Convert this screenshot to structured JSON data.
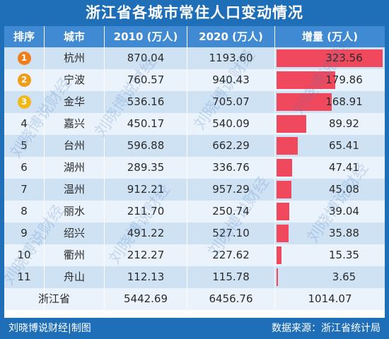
{
  "title": "浙江省各城市常住人口变动情况",
  "headers": {
    "rank": "排序",
    "city": "城市",
    "pop2010": "2010 (万人)",
    "pop2020": "2020 (万人)",
    "increase": "增量 (万人)"
  },
  "badge_colors": [
    "#ef7d1a",
    "#f19d18",
    "#f4b718"
  ],
  "bar_color": "#f0495e",
  "chart_data": {
    "type": "table",
    "title": "浙江省各城市常住人口变动情况",
    "columns": [
      "排序",
      "城市",
      "2010 (万人)",
      "2020 (万人)",
      "增量 (万人)"
    ],
    "rows": [
      {
        "rank": "1",
        "city": "杭州",
        "pop2010": "870.04",
        "pop2020": "1193.60",
        "increase": "323.56",
        "increase_value": 323.56
      },
      {
        "rank": "2",
        "city": "宁波",
        "pop2010": "760.57",
        "pop2020": "940.43",
        "increase": "179.86",
        "increase_value": 179.86
      },
      {
        "rank": "3",
        "city": "金华",
        "pop2010": "536.16",
        "pop2020": "705.07",
        "increase": "168.91",
        "increase_value": 168.91
      },
      {
        "rank": "4",
        "city": "嘉兴",
        "pop2010": "450.17",
        "pop2020": "540.09",
        "increase": "89.92",
        "increase_value": 89.92
      },
      {
        "rank": "5",
        "city": "台州",
        "pop2010": "596.88",
        "pop2020": "662.29",
        "increase": "65.41",
        "increase_value": 65.41
      },
      {
        "rank": "6",
        "city": "湖州",
        "pop2010": "289.35",
        "pop2020": "336.76",
        "increase": "47.41",
        "increase_value": 47.41
      },
      {
        "rank": "7",
        "city": "温州",
        "pop2010": "912.21",
        "pop2020": "957.29",
        "increase": "45.08",
        "increase_value": 45.08
      },
      {
        "rank": "8",
        "city": "丽水",
        "pop2010": "211.70",
        "pop2020": "250.74",
        "increase": "39.04",
        "increase_value": 39.04
      },
      {
        "rank": "9",
        "city": "绍兴",
        "pop2010": "491.22",
        "pop2020": "527.10",
        "increase": "35.88",
        "increase_value": 35.88
      },
      {
        "rank": "10",
        "city": "衢州",
        "pop2010": "212.27",
        "pop2020": "227.62",
        "increase": "15.35",
        "increase_value": 15.35
      },
      {
        "rank": "11",
        "city": "舟山",
        "pop2010": "112.13",
        "pop2020": "115.78",
        "increase": "3.65",
        "increase_value": 3.65
      }
    ],
    "total": {
      "label": "浙江省",
      "pop2010": "5442.69",
      "pop2020": "6456.76",
      "increase": "1014.07"
    }
  },
  "footer": {
    "credit": "刘晓博说财经|制图",
    "source": "数据来源：浙江省统计局"
  },
  "watermark": "刘晓博说财经"
}
